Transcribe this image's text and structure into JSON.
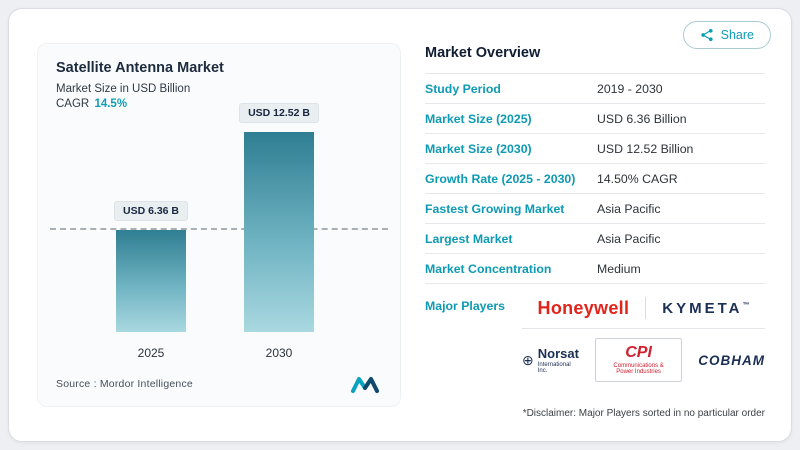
{
  "page": {
    "share_label": "Share"
  },
  "chart": {
    "cagr_label": "CAGR",
    "cagr_value": "14.5%",
    "source_label": "Source :",
    "source_value": "Mordor Intelligence"
  },
  "chart_data": {
    "type": "bar",
    "title": "Satellite Antenna Market",
    "subtitle": "Market Size in USD Billion",
    "categories": [
      "2025",
      "2030"
    ],
    "values": [
      6.36,
      12.52
    ],
    "bar_labels": [
      "USD 6.36 B",
      "USD 12.52 B"
    ],
    "xlabel": "",
    "ylabel": "Market Size in USD Billion",
    "ylim": [
      0,
      13
    ],
    "grid": false,
    "legend": false,
    "annotations": [
      "CAGR 14.5%"
    ],
    "reference_line_y": 6.36
  },
  "overview": {
    "title": "Market Overview",
    "rows": [
      {
        "label": "Study Period",
        "value": "2019 - 2030"
      },
      {
        "label": "Market Size (2025)",
        "value": "USD 6.36 Billion"
      },
      {
        "label": "Market Size (2030)",
        "value": "USD 12.52 Billion"
      },
      {
        "label": "Growth Rate (2025 - 2030)",
        "value": "14.50% CAGR"
      },
      {
        "label": "Fastest Growing Market",
        "value": "Asia Pacific"
      },
      {
        "label": "Largest Market",
        "value": "Asia Pacific"
      },
      {
        "label": "Market Concentration",
        "value": "Medium"
      }
    ],
    "major_players_label": "Major Players",
    "players": [
      {
        "name": "Honeywell"
      },
      {
        "name": "KYMETA",
        "tm": "™"
      },
      {
        "name": "Norsat",
        "sub": "International Inc."
      },
      {
        "name": "CPI",
        "sub": "Communications & Power Industries"
      },
      {
        "name": "COBHAM"
      }
    ],
    "disclaimer": "*Disclaimer: Major Players sorted in no particular order"
  },
  "colors": {
    "accent_teal": "#0f9db6",
    "bar_top": "#2f7e92",
    "bar_bottom": "#a9d8e0",
    "honeywell_red": "#e2231a",
    "cpi_red": "#cf2030",
    "logo_navy": "#1b2f55"
  }
}
